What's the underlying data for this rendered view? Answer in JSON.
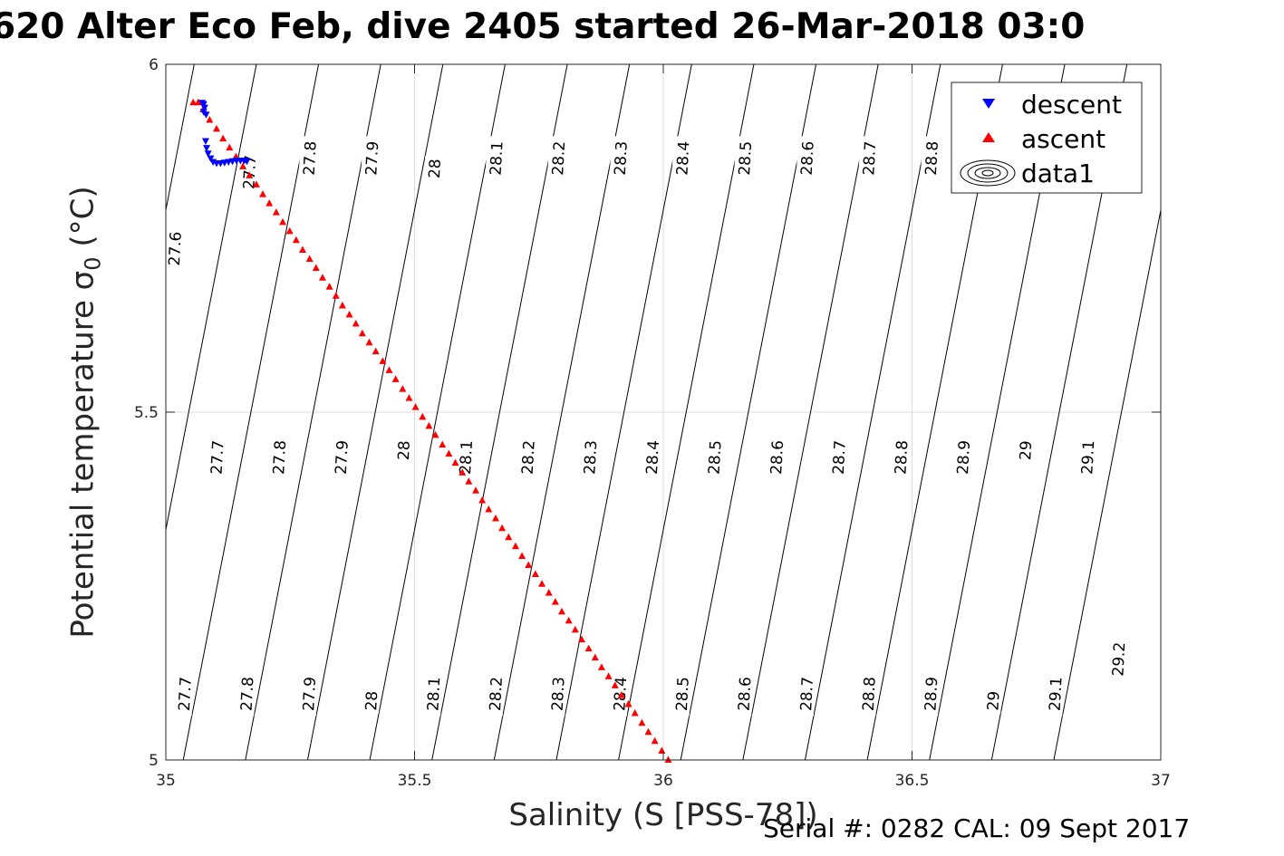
{
  "title": "620 Alter Eco Feb, dive 2405 started 26-Mar-2018 03:0",
  "ylabel": {
    "main": "Potential temperature",
    "sigma": "σ",
    "sub": "0",
    "unit": "(°C)"
  },
  "xlabel": "Salinity (S [PSS-78])",
  "footnote": "Serial #: 0282  CAL: 09 Sept 2017",
  "chart_data": {
    "type": "scatter",
    "xlim": [
      35,
      37
    ],
    "ylim": [
      5,
      6
    ],
    "xticks": [
      {
        "value": 35,
        "label": "35"
      },
      {
        "value": 35.5,
        "label": "35.5"
      },
      {
        "value": 36,
        "label": "36"
      },
      {
        "value": 36.5,
        "label": "36.5"
      },
      {
        "value": 37,
        "label": "37"
      }
    ],
    "yticks": [
      {
        "value": 5,
        "label": "5"
      },
      {
        "value": 5.5,
        "label": "5.5"
      },
      {
        "value": 6,
        "label": "6"
      }
    ],
    "grid": true,
    "legend_position": "top-right",
    "legend": [
      "descent",
      "ascent",
      "data1"
    ],
    "colors": {
      "descent": "#0000ff",
      "ascent": "#ff0000",
      "contour": "#000000",
      "grid": "#dcdcdc",
      "axis": "#262626"
    },
    "series": [
      {
        "name": "descent",
        "marker": "triangle-down",
        "points": [
          [
            35.073,
            5.945
          ],
          [
            35.076,
            5.943
          ],
          [
            35.078,
            5.938
          ],
          [
            35.076,
            5.932
          ],
          [
            35.081,
            5.928
          ],
          [
            35.08,
            5.89
          ],
          [
            35.082,
            5.88
          ],
          [
            35.085,
            5.872
          ],
          [
            35.09,
            5.865
          ],
          [
            35.095,
            5.86
          ],
          [
            35.102,
            5.858
          ],
          [
            35.11,
            5.858
          ],
          [
            35.118,
            5.859
          ],
          [
            35.126,
            5.86
          ],
          [
            35.134,
            5.861
          ],
          [
            35.142,
            5.862
          ],
          [
            35.15,
            5.862
          ],
          [
            35.157,
            5.862
          ],
          [
            35.163,
            5.861
          ]
        ]
      },
      {
        "name": "ascent",
        "marker": "triangle-up",
        "points": [
          [
            35.055,
            5.945
          ],
          [
            35.065,
            5.945
          ],
          [
            35.075,
            5.935
          ],
          [
            35.088,
            5.92
          ],
          [
            35.102,
            5.907
          ],
          [
            35.115,
            5.893
          ],
          [
            35.128,
            5.88
          ],
          [
            35.141,
            5.867
          ],
          [
            35.155,
            5.853
          ],
          [
            35.168,
            5.84
          ],
          [
            35.182,
            5.827
          ],
          [
            35.195,
            5.813
          ],
          [
            35.208,
            5.8
          ],
          [
            35.222,
            5.787
          ],
          [
            35.235,
            5.773
          ],
          [
            35.249,
            5.76
          ],
          [
            35.262,
            5.747
          ],
          [
            35.275,
            5.733
          ],
          [
            35.289,
            5.72
          ],
          [
            35.302,
            5.707
          ],
          [
            35.315,
            5.693
          ],
          [
            35.329,
            5.68
          ],
          [
            35.342,
            5.667
          ],
          [
            35.355,
            5.653
          ],
          [
            35.369,
            5.64
          ],
          [
            35.382,
            5.627
          ],
          [
            35.395,
            5.613
          ],
          [
            35.409,
            5.6
          ],
          [
            35.422,
            5.587
          ],
          [
            35.436,
            5.573
          ],
          [
            35.449,
            5.56
          ],
          [
            35.462,
            5.547
          ],
          [
            35.476,
            5.533
          ],
          [
            35.489,
            5.52
          ],
          [
            35.502,
            5.507
          ],
          [
            35.516,
            5.493
          ],
          [
            35.529,
            5.48
          ],
          [
            35.542,
            5.467
          ],
          [
            35.556,
            5.453
          ],
          [
            35.569,
            5.44
          ],
          [
            35.582,
            5.427
          ],
          [
            35.596,
            5.413
          ],
          [
            35.609,
            5.4
          ],
          [
            35.623,
            5.387
          ],
          [
            35.636,
            5.373
          ],
          [
            35.649,
            5.36
          ],
          [
            35.663,
            5.347
          ],
          [
            35.676,
            5.333
          ],
          [
            35.689,
            5.32
          ],
          [
            35.703,
            5.307
          ],
          [
            35.716,
            5.293
          ],
          [
            35.729,
            5.28
          ],
          [
            35.743,
            5.267
          ],
          [
            35.756,
            5.253
          ],
          [
            35.77,
            5.24
          ],
          [
            35.783,
            5.227
          ],
          [
            35.796,
            5.213
          ],
          [
            35.81,
            5.2
          ],
          [
            35.823,
            5.187
          ],
          [
            35.836,
            5.173
          ],
          [
            35.85,
            5.16
          ],
          [
            35.863,
            5.147
          ],
          [
            35.876,
            5.133
          ],
          [
            35.89,
            5.12
          ],
          [
            35.903,
            5.107
          ],
          [
            35.916,
            5.093
          ],
          [
            35.93,
            5.08
          ],
          [
            35.943,
            5.067
          ],
          [
            35.957,
            5.053
          ],
          [
            35.97,
            5.04
          ],
          [
            35.983,
            5.027
          ],
          [
            35.997,
            5.013
          ],
          [
            36.01,
            5.0
          ]
        ]
      }
    ],
    "contours": {
      "name": "data1",
      "levels": [
        27.6,
        27.7,
        27.8,
        27.9,
        28,
        28.1,
        28.2,
        28.3,
        28.4,
        28.5,
        28.6,
        28.7,
        28.8,
        28.9,
        29,
        29.1,
        29.2
      ],
      "lines": [
        {
          "level": 27.6,
          "top": [
            35.057,
            6
          ],
          "bottom": [
            34.785,
            5
          ]
        },
        {
          "level": 27.7,
          "top": [
            35.182,
            6
          ],
          "bottom": [
            34.91,
            5
          ]
        },
        {
          "level": 27.8,
          "top": [
            35.307,
            6
          ],
          "bottom": [
            35.035,
            5
          ]
        },
        {
          "level": 27.9,
          "top": [
            35.432,
            6
          ],
          "bottom": [
            35.16,
            5
          ]
        },
        {
          "level": 28,
          "top": [
            35.557,
            6
          ],
          "bottom": [
            35.285,
            5
          ]
        },
        {
          "level": 28.1,
          "top": [
            35.682,
            6
          ],
          "bottom": [
            35.41,
            5
          ]
        },
        {
          "level": 28.2,
          "top": [
            35.807,
            6
          ],
          "bottom": [
            35.535,
            5
          ]
        },
        {
          "level": 28.3,
          "top": [
            35.932,
            6
          ],
          "bottom": [
            35.66,
            5
          ]
        },
        {
          "level": 28.4,
          "top": [
            36.057,
            6
          ],
          "bottom": [
            35.785,
            5
          ]
        },
        {
          "level": 28.5,
          "top": [
            36.182,
            6
          ],
          "bottom": [
            35.91,
            5
          ]
        },
        {
          "level": 28.6,
          "top": [
            36.307,
            6
          ],
          "bottom": [
            36.035,
            5
          ]
        },
        {
          "level": 28.7,
          "top": [
            36.432,
            6
          ],
          "bottom": [
            36.16,
            5
          ]
        },
        {
          "level": 28.8,
          "top": [
            36.557,
            6
          ],
          "bottom": [
            36.285,
            5
          ]
        },
        {
          "level": 28.9,
          "top": [
            36.682,
            6
          ],
          "bottom": [
            36.41,
            5
          ]
        },
        {
          "level": 29,
          "top": [
            36.807,
            6
          ],
          "bottom": [
            36.535,
            5
          ]
        },
        {
          "level": 29.1,
          "top": [
            36.932,
            6
          ],
          "bottom": [
            36.66,
            5
          ]
        },
        {
          "level": 29.2,
          "top": [
            37.057,
            6
          ],
          "bottom": [
            36.785,
            5
          ]
        }
      ],
      "labels": [
        {
          "text": "27.6",
          "at": [
            35.018,
            5.735
          ]
        },
        {
          "text": "27.7",
          "at": [
            35.168,
            5.845
          ]
        },
        {
          "text": "27.8",
          "at": [
            35.289,
            5.865
          ]
        },
        {
          "text": "27.9",
          "at": [
            35.414,
            5.865
          ]
        },
        {
          "text": "28",
          "at": [
            35.54,
            5.85
          ]
        },
        {
          "text": "28.1",
          "at": [
            35.664,
            5.865
          ]
        },
        {
          "text": "28.2",
          "at": [
            35.789,
            5.865
          ]
        },
        {
          "text": "28.3",
          "at": [
            35.914,
            5.865
          ]
        },
        {
          "text": "28.4",
          "at": [
            36.039,
            5.865
          ]
        },
        {
          "text": "28.5",
          "at": [
            36.164,
            5.865
          ]
        },
        {
          "text": "28.6",
          "at": [
            36.289,
            5.865
          ]
        },
        {
          "text": "28.7",
          "at": [
            36.414,
            5.865
          ]
        },
        {
          "text": "28.8",
          "at": [
            36.539,
            5.865
          ]
        },
        {
          "text": "27.7",
          "at": [
            35.103,
            5.435
          ]
        },
        {
          "text": "27.8",
          "at": [
            35.228,
            5.435
          ]
        },
        {
          "text": "27.9",
          "at": [
            35.353,
            5.435
          ]
        },
        {
          "text": "28",
          "at": [
            35.478,
            5.445
          ]
        },
        {
          "text": "28.1",
          "at": [
            35.603,
            5.435
          ]
        },
        {
          "text": "28.2",
          "at": [
            35.728,
            5.435
          ]
        },
        {
          "text": "28.3",
          "at": [
            35.853,
            5.435
          ]
        },
        {
          "text": "28.4",
          "at": [
            35.978,
            5.435
          ]
        },
        {
          "text": "28.5",
          "at": [
            36.103,
            5.435
          ]
        },
        {
          "text": "28.6",
          "at": [
            36.228,
            5.435
          ]
        },
        {
          "text": "28.7",
          "at": [
            36.353,
            5.435
          ]
        },
        {
          "text": "28.8",
          "at": [
            36.478,
            5.435
          ]
        },
        {
          "text": "28.9",
          "at": [
            36.603,
            5.435
          ]
        },
        {
          "text": "29",
          "at": [
            36.728,
            5.445
          ]
        },
        {
          "text": "29.1",
          "at": [
            36.853,
            5.435
          ]
        },
        {
          "text": "27.7",
          "at": [
            35.038,
            5.095
          ]
        },
        {
          "text": "27.8",
          "at": [
            35.163,
            5.095
          ]
        },
        {
          "text": "27.9",
          "at": [
            35.288,
            5.095
          ]
        },
        {
          "text": "28",
          "at": [
            35.413,
            5.085
          ]
        },
        {
          "text": "28.1",
          "at": [
            35.538,
            5.095
          ]
        },
        {
          "text": "28.2",
          "at": [
            35.663,
            5.095
          ]
        },
        {
          "text": "28.3",
          "at": [
            35.788,
            5.095
          ]
        },
        {
          "text": "28.4",
          "at": [
            35.913,
            5.095
          ]
        },
        {
          "text": "28.5",
          "at": [
            36.038,
            5.095
          ]
        },
        {
          "text": "28.6",
          "at": [
            36.163,
            5.095
          ]
        },
        {
          "text": "28.7",
          "at": [
            36.288,
            5.095
          ]
        },
        {
          "text": "28.8",
          "at": [
            36.413,
            5.095
          ]
        },
        {
          "text": "28.9",
          "at": [
            36.538,
            5.095
          ]
        },
        {
          "text": "29",
          "at": [
            36.663,
            5.085
          ]
        },
        {
          "text": "29.1",
          "at": [
            36.788,
            5.095
          ]
        },
        {
          "text": "29.2",
          "at": [
            36.915,
            5.145
          ]
        }
      ]
    }
  }
}
